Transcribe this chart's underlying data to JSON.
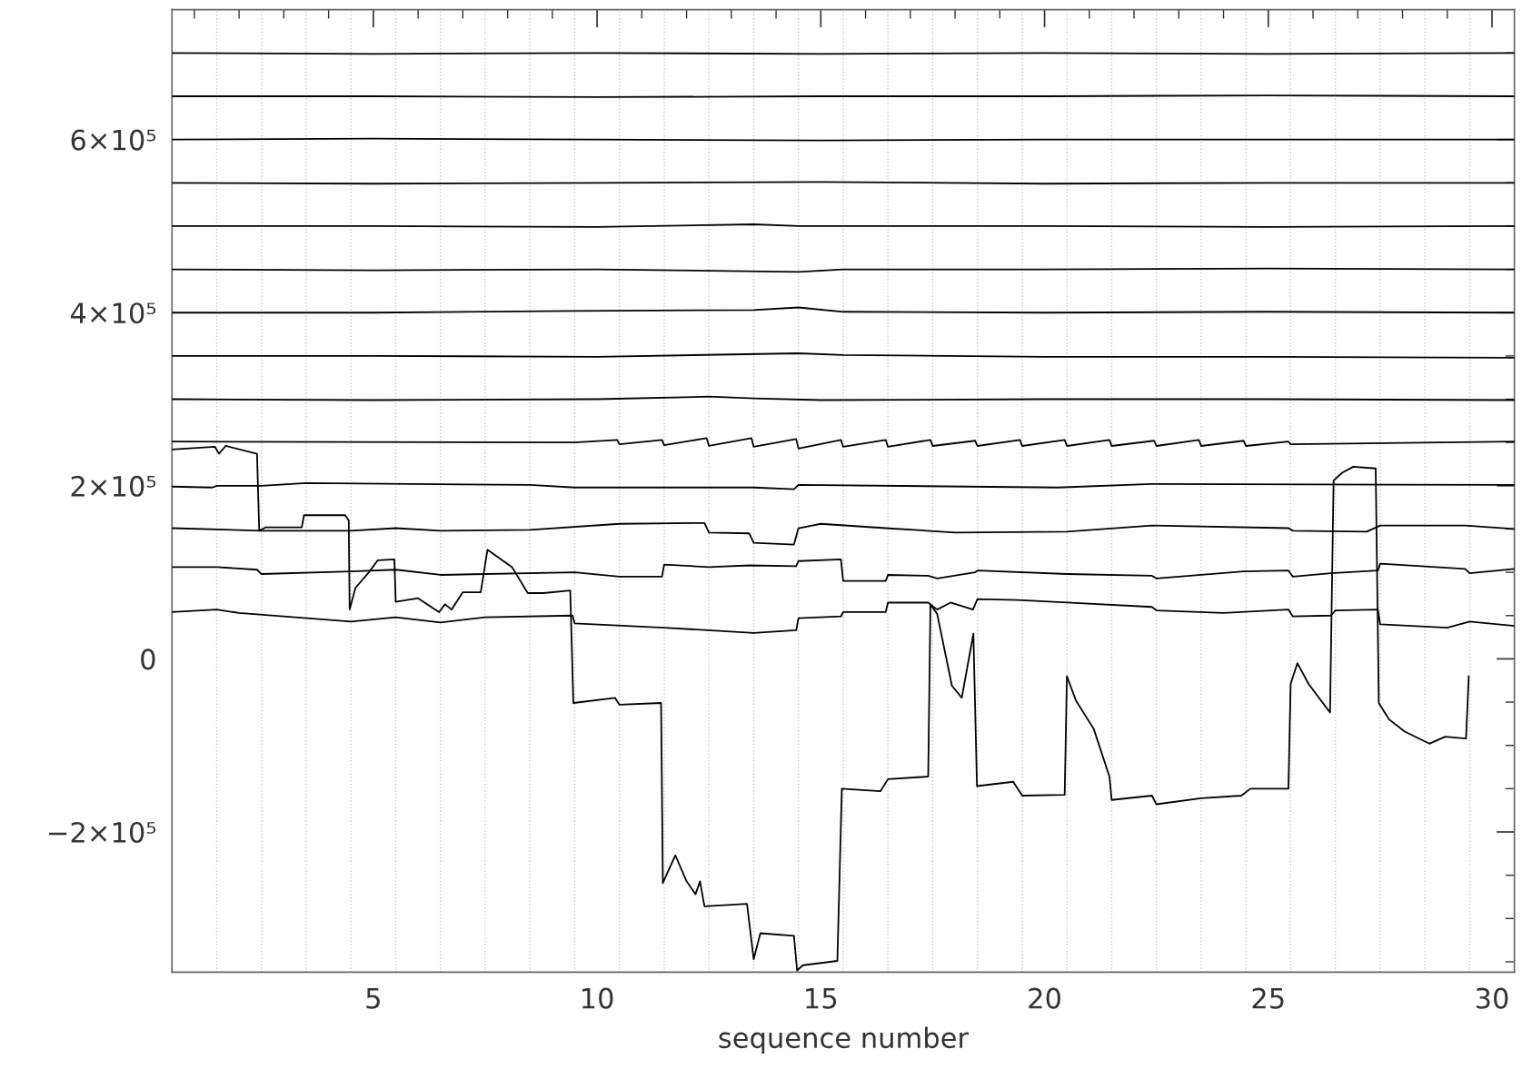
{
  "chart_data": {
    "type": "line",
    "xlabel": "sequence number",
    "xlim": [
      0.5,
      30.5
    ],
    "ylim": [
      -362000,
      750000
    ],
    "xticks": [
      {
        "value": 1,
        "label": null
      },
      {
        "value": 2,
        "label": null
      },
      {
        "value": 3,
        "label": null
      },
      {
        "value": 4,
        "label": null
      },
      5,
      {
        "value": 6,
        "label": null
      },
      {
        "value": 7,
        "label": null
      },
      {
        "value": 8,
        "label": null
      },
      {
        "value": 9,
        "label": null
      },
      10,
      {
        "value": 11,
        "label": null
      },
      {
        "value": 12,
        "label": null
      },
      {
        "value": 13,
        "label": null
      },
      {
        "value": 14,
        "label": null
      },
      15,
      {
        "value": 16,
        "label": null
      },
      {
        "value": 17,
        "label": null
      },
      {
        "value": 18,
        "label": null
      },
      {
        "value": 19,
        "label": null
      },
      20,
      {
        "value": 21,
        "label": null
      },
      {
        "value": 22,
        "label": null
      },
      {
        "value": 23,
        "label": null
      },
      {
        "value": 24,
        "label": null
      },
      25,
      {
        "value": 26,
        "label": null
      },
      {
        "value": 27,
        "label": null
      },
      {
        "value": 28,
        "label": null
      },
      {
        "value": 29,
        "label": null
      },
      30
    ],
    "yticks": [
      {
        "value": -350000,
        "label": null
      },
      {
        "value": -300000,
        "label": null
      },
      {
        "value": -250000,
        "label": null
      },
      {
        "value": -200000,
        "label": "−2×10⁵"
      },
      {
        "value": -150000,
        "label": null
      },
      {
        "value": -100000,
        "label": null
      },
      {
        "value": -50000,
        "label": null
      },
      0,
      {
        "value": 50000,
        "label": null
      },
      {
        "value": 100000,
        "label": null
      },
      {
        "value": 150000,
        "label": null
      },
      {
        "value": 200000,
        "label": "2×10⁵"
      },
      {
        "value": 250000,
        "label": null
      },
      {
        "value": 300000,
        "label": null
      },
      {
        "value": 350000,
        "label": null
      },
      {
        "value": 400000,
        "label": "4×10⁵"
      },
      {
        "value": 450000,
        "label": null
      },
      {
        "value": 500000,
        "label": null
      },
      {
        "value": 550000,
        "label": null
      },
      {
        "value": 600000,
        "label": "6×10⁵"
      },
      {
        "value": 650000,
        "label": null
      },
      {
        "value": 700000,
        "label": null
      }
    ],
    "grid": false,
    "line_style": "solid",
    "marker": "none",
    "ref_lines": [
      {
        "axis": "x",
        "value": 1.5,
        "line_style": "dotted",
        "color": "#c8c8c8"
      },
      {
        "axis": "x",
        "value": 2.5,
        "line_style": "dotted",
        "color": "#c8c8c8"
      },
      {
        "axis": "x",
        "value": 3.5,
        "line_style": "dotted",
        "color": "#c8c8c8"
      },
      {
        "axis": "x",
        "value": 4.5,
        "line_style": "dotted",
        "color": "#c8c8c8"
      },
      {
        "axis": "x",
        "value": 5.5,
        "line_style": "dotted",
        "color": "#c8c8c8"
      },
      {
        "axis": "x",
        "value": 6.5,
        "line_style": "dotted",
        "color": "#c8c8c8"
      },
      {
        "axis": "x",
        "value": 7.5,
        "line_style": "dotted",
        "color": "#c8c8c8"
      },
      {
        "axis": "x",
        "value": 8.5,
        "line_style": "dotted",
        "color": "#c8c8c8"
      },
      {
        "axis": "x",
        "value": 9.5,
        "line_style": "dotted",
        "color": "#c8c8c8"
      },
      {
        "axis": "x",
        "value": 10.5,
        "line_style": "dotted",
        "color": "#c8c8c8"
      },
      {
        "axis": "x",
        "value": 11.5,
        "line_style": "dotted",
        "color": "#c8c8c8"
      },
      {
        "axis": "x",
        "value": 12.5,
        "line_style": "dotted",
        "color": "#c8c8c8"
      },
      {
        "axis": "x",
        "value": 13.5,
        "line_style": "dotted",
        "color": "#c8c8c8"
      },
      {
        "axis": "x",
        "value": 14.5,
        "line_style": "dotted",
        "color": "#c8c8c8"
      },
      {
        "axis": "x",
        "value": 15.5,
        "line_style": "dotted",
        "color": "#c8c8c8"
      },
      {
        "axis": "x",
        "value": 16.5,
        "line_style": "dotted",
        "color": "#c8c8c8"
      },
      {
        "axis": "x",
        "value": 17.5,
        "line_style": "dotted",
        "color": "#c8c8c8"
      },
      {
        "axis": "x",
        "value": 18.5,
        "line_style": "dotted",
        "color": "#c8c8c8"
      },
      {
        "axis": "x",
        "value": 19.5,
        "line_style": "dotted",
        "color": "#c8c8c8"
      },
      {
        "axis": "x",
        "value": 20.5,
        "line_style": "dotted",
        "color": "#c8c8c8"
      },
      {
        "axis": "x",
        "value": 21.5,
        "line_style": "dotted",
        "color": "#c8c8c8"
      },
      {
        "axis": "x",
        "value": 22.5,
        "line_style": "dotted",
        "color": "#c8c8c8"
      },
      {
        "axis": "x",
        "value": 23.5,
        "line_style": "dotted",
        "color": "#c8c8c8"
      },
      {
        "axis": "x",
        "value": 24.5,
        "line_style": "dotted",
        "color": "#c8c8c8"
      },
      {
        "axis": "x",
        "value": 25.5,
        "line_style": "dotted",
        "color": "#c8c8c8"
      },
      {
        "axis": "x",
        "value": 26.5,
        "line_style": "dotted",
        "color": "#c8c8c8"
      },
      {
        "axis": "x",
        "value": 27.5,
        "line_style": "dotted",
        "color": "#c8c8c8"
      },
      {
        "axis": "x",
        "value": 28.5,
        "line_style": "dotted",
        "color": "#c8c8c8"
      },
      {
        "axis": "x",
        "value": 29.5,
        "line_style": "dotted",
        "color": "#c8c8c8"
      }
    ],
    "series": [
      {
        "color": "#000000",
        "x": [
          0.5,
          5,
          10,
          15,
          20,
          25,
          30.5
        ],
        "values": [
          700000,
          699000,
          700000,
          699000,
          700000,
          699000,
          700000
        ]
      },
      {
        "color": "#000000",
        "x": [
          0.5,
          5,
          10,
          15,
          20,
          25,
          30.5
        ],
        "values": [
          650000,
          650000,
          649000,
          650000,
          650000,
          651000,
          650000
        ]
      },
      {
        "color": "#000000",
        "x": [
          0.5,
          5,
          10,
          15,
          20,
          25,
          30.5
        ],
        "values": [
          600000,
          601000,
          600000,
          599000,
          600000,
          600000,
          600000
        ]
      },
      {
        "color": "#000000",
        "x": [
          0.5,
          5,
          10,
          15,
          20,
          25,
          30.5
        ],
        "values": [
          550000,
          549000,
          550000,
          551000,
          549000,
          550000,
          550000
        ]
      },
      {
        "color": "#000000",
        "x": [
          0.5,
          5,
          10,
          13.5,
          14.5,
          20,
          25,
          30.5
        ],
        "values": [
          500000,
          500000,
          499000,
          502000,
          500000,
          500000,
          499000,
          500000
        ]
      },
      {
        "color": "#000000",
        "x": [
          0.5,
          5,
          10,
          14.5,
          15.5,
          20,
          25,
          30.5
        ],
        "values": [
          450000,
          449000,
          450000,
          447000,
          450000,
          450000,
          451000,
          450000
        ]
      },
      {
        "color": "#000000",
        "x": [
          0.5,
          5,
          9.5,
          13.5,
          14.5,
          15.5,
          20,
          25,
          30.5
        ],
        "values": [
          400000,
          400000,
          402000,
          403000,
          406000,
          401000,
          400000,
          401000,
          400000
        ]
      },
      {
        "color": "#000000",
        "x": [
          0.5,
          5,
          10,
          14.5,
          15.5,
          20,
          25,
          30.5
        ],
        "values": [
          350000,
          350000,
          349000,
          353000,
          351000,
          349000,
          349000,
          348000
        ]
      },
      {
        "color": "#000000",
        "x": [
          0.5,
          5,
          10,
          12.5,
          13.5,
          15,
          20,
          25,
          30.5
        ],
        "values": [
          300000,
          299000,
          300000,
          303000,
          301000,
          299000,
          300000,
          300000,
          299000
        ]
      },
      {
        "color": "#000000",
        "x": [
          0.5,
          9.5,
          10.45,
          10.5,
          11.45,
          11.5,
          12.45,
          12.5,
          13.45,
          13.5,
          14.45,
          14.5,
          15.45,
          15.5,
          16.45,
          16.5,
          17.45,
          17.5,
          18.45,
          18.5,
          19.45,
          19.5,
          20.45,
          20.5,
          21.45,
          21.5,
          22.45,
          22.5,
          23.45,
          23.5,
          24.45,
          24.5,
          25.45,
          25.5,
          30.5
        ],
        "values": [
          251000,
          250000,
          253000,
          248000,
          253000,
          247000,
          255000,
          246000,
          255000,
          245000,
          254000,
          243000,
          253000,
          245000,
          253000,
          245000,
          253000,
          246000,
          252000,
          246000,
          253000,
          246000,
          253000,
          246000,
          253000,
          246000,
          252000,
          246000,
          253000,
          246000,
          252000,
          246000,
          251000,
          248000,
          251000
        ]
      },
      {
        "color": "#000000",
        "x": [
          0.5,
          1.4,
          1.5,
          2.5,
          3.5,
          8.5,
          9.5,
          13.5,
          14.4,
          14.5,
          20.3,
          22.4,
          30.5
        ],
        "values": [
          199000,
          198000,
          200000,
          200000,
          203000,
          201000,
          198000,
          198000,
          196000,
          201000,
          198000,
          202000,
          201000
        ]
      },
      {
        "color": "#000000",
        "x": [
          0.5,
          2.5,
          4.5,
          5.5,
          6.5,
          8.5,
          10.5,
          12.4,
          12.5,
          13.4,
          13.5,
          14.4,
          14.5,
          15,
          16.45,
          18,
          20.5,
          22.4,
          25.45,
          25.55,
          27.2,
          27.5,
          29.4,
          30.5
        ],
        "values": [
          151000,
          148000,
          148000,
          151000,
          148000,
          149000,
          156000,
          157000,
          146000,
          145000,
          134000,
          132000,
          151000,
          156000,
          151000,
          146000,
          147000,
          154000,
          151000,
          148000,
          147000,
          154000,
          154000,
          150000
        ]
      },
      {
        "color": "#000000",
        "x": [
          0.5,
          1.5,
          2.4,
          2.5,
          4.5,
          5.5,
          6.5,
          9.5,
          10.5,
          11.45,
          11.5,
          12.5,
          13.4,
          14.45,
          14.5,
          15.45,
          15.5,
          16.45,
          16.5,
          17.4,
          17.6,
          18.45,
          18.5,
          20.5,
          22.4,
          22.5,
          24.45,
          25.45,
          25.55,
          26.4,
          27.45,
          27.5,
          29.4,
          29.5,
          30.5
        ],
        "values": [
          106000,
          106000,
          103000,
          98000,
          101000,
          103000,
          97000,
          100000,
          95000,
          95000,
          109000,
          106000,
          108000,
          107000,
          113000,
          115000,
          90000,
          90000,
          97000,
          96000,
          93000,
          100000,
          102000,
          98000,
          96000,
          93000,
          101000,
          102000,
          95000,
          99000,
          102000,
          110000,
          104000,
          99000,
          104000
        ]
      },
      {
        "color": "#000000",
        "x": [
          0.5,
          1.5,
          2.0,
          4.5,
          5.5,
          6.5,
          7.5,
          9.45,
          9.5,
          11.5,
          13.5,
          14.45,
          14.5,
          15.45,
          15.5,
          16.45,
          16.5,
          17.4,
          17.6,
          17.9,
          18.4,
          18.5,
          19.4,
          20.5,
          22.4,
          22.5,
          24,
          25.45,
          25.55,
          26.4,
          26.5,
          27.45,
          27.5,
          29,
          29.5,
          30.5
        ],
        "values": [
          54000,
          57000,
          53000,
          43000,
          48000,
          42000,
          48000,
          50000,
          41000,
          36000,
          30000,
          33000,
          47000,
          49000,
          54000,
          54000,
          65000,
          65000,
          57000,
          65000,
          57000,
          69000,
          68000,
          65000,
          60000,
          56000,
          53000,
          57000,
          49000,
          50000,
          56000,
          57000,
          40000,
          36000,
          43000,
          38000
        ]
      },
      {
        "color": "#000000",
        "x": [
          0.5,
          1.46,
          1.55,
          1.7,
          2.4,
          2.45,
          2.6,
          3.4,
          3.45,
          4.37,
          4.45,
          4.47,
          4.6,
          4.9,
          5.1,
          5.47,
          5.5,
          6.0,
          6.47,
          6.6,
          6.75,
          7.0,
          7.4,
          7.55,
          8.1,
          8.45,
          8.8,
          9.4,
          9.47,
          10.4,
          10.5,
          11.43,
          11.47,
          11.75,
          12.0,
          12.2,
          12.3,
          12.4,
          13.35,
          13.5,
          13.65,
          14.4,
          14.47,
          14.6,
          15.37,
          15.47,
          16.33,
          16.5,
          17.4,
          17.45,
          17.6,
          17.93,
          18.15,
          18.41,
          18.49,
          19.3,
          19.5,
          20.45,
          20.5,
          20.7,
          21.1,
          21.45,
          21.5,
          22.4,
          22.5,
          23.5,
          24.4,
          24.6,
          25.45,
          25.5,
          25.65,
          25.9,
          26.38,
          26.46,
          26.65,
          26.9,
          27.4,
          27.47,
          27.7,
          28.05,
          28.6,
          28.95,
          29.42,
          29.48
        ],
        "values": [
          242000,
          245000,
          237000,
          246000,
          237000,
          148000,
          152000,
          152000,
          166000,
          166000,
          160000,
          57000,
          82000,
          100000,
          114000,
          115000,
          66000,
          70000,
          54000,
          63000,
          57000,
          77000,
          77000,
          126000,
          106000,
          76000,
          76000,
          79000,
          -51000,
          -45000,
          -53000,
          -51000,
          -259000,
          -227000,
          -257000,
          -272000,
          -257000,
          -286000,
          -283000,
          -347000,
          -317000,
          -320000,
          -360000,
          -354000,
          -349000,
          -150000,
          -153000,
          -139000,
          -136000,
          63000,
          52000,
          -31000,
          -45000,
          29000,
          -147000,
          -142000,
          -158000,
          -157000,
          -20000,
          -48000,
          -81000,
          -136000,
          -163000,
          -158000,
          -168000,
          -161000,
          -158000,
          -150000,
          -150000,
          -29000,
          -5000,
          -29000,
          -62000,
          206000,
          215000,
          222000,
          220000,
          -51000,
          -70000,
          -84000,
          -98000,
          -90000,
          -92000,
          -20000
        ]
      }
    ]
  }
}
